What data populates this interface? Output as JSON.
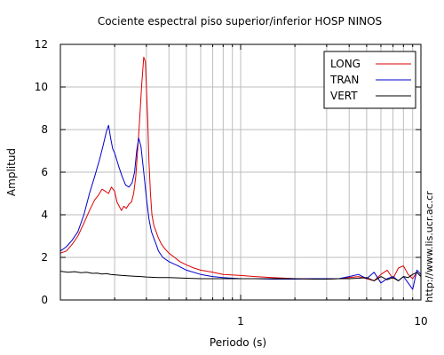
{
  "chart_data": {
    "type": "line",
    "title": "Cociente espectral piso superior/inferior  HOSP NINOS",
    "xlabel": "Periodo (s)",
    "ylabel": "Amplitud",
    "xscale": "log",
    "xlim": [
      0.1,
      10
    ],
    "ylim": [
      0,
      12
    ],
    "grid": true,
    "legend_position": "top-right",
    "x_tick_labels": [
      {
        "value": 1,
        "label": "1"
      },
      {
        "value": 10,
        "label": "10"
      }
    ],
    "y_tick_labels": [
      {
        "value": 0,
        "label": "0"
      },
      {
        "value": 2,
        "label": "2"
      },
      {
        "value": 4,
        "label": "4"
      },
      {
        "value": 6,
        "label": "6"
      },
      {
        "value": 8,
        "label": "8"
      },
      {
        "value": 10,
        "label": "10"
      },
      {
        "value": 12,
        "label": "12"
      }
    ],
    "annotation": "http://www.lis.ucr.ac.cr",
    "series": [
      {
        "name": "LONG",
        "color": "#dd0000",
        "x": [
          0.1,
          0.108,
          0.116,
          0.125,
          0.135,
          0.145,
          0.155,
          0.162,
          0.17,
          0.178,
          0.185,
          0.192,
          0.2,
          0.206,
          0.212,
          0.218,
          0.225,
          0.232,
          0.24,
          0.248,
          0.255,
          0.262,
          0.268,
          0.275,
          0.282,
          0.29,
          0.296,
          0.3,
          0.305,
          0.31,
          0.316,
          0.322,
          0.33,
          0.34,
          0.35,
          0.365,
          0.38,
          0.4,
          0.43,
          0.46,
          0.5,
          0.55,
          0.6,
          0.7,
          0.8,
          1.0,
          1.2,
          1.5,
          2.0,
          2.5,
          3.0,
          3.5,
          4.0,
          4.5,
          5.0,
          5.5,
          6.0,
          6.5,
          7.0,
          7.5,
          8.0,
          8.5,
          9.0,
          9.5,
          10.0
        ],
        "y": [
          2.2,
          2.3,
          2.6,
          3.0,
          3.6,
          4.2,
          4.7,
          4.9,
          5.2,
          5.1,
          5.0,
          5.3,
          5.1,
          4.6,
          4.4,
          4.2,
          4.4,
          4.3,
          4.5,
          4.6,
          5.0,
          5.8,
          7.0,
          8.4,
          10.0,
          11.4,
          11.2,
          10.0,
          8.5,
          6.5,
          5.0,
          4.0,
          3.5,
          3.2,
          2.9,
          2.6,
          2.4,
          2.2,
          2.0,
          1.8,
          1.65,
          1.5,
          1.4,
          1.3,
          1.2,
          1.15,
          1.1,
          1.05,
          1.0,
          1.0,
          0.98,
          1.0,
          1.05,
          1.1,
          1.0,
          0.9,
          1.2,
          1.4,
          1.0,
          1.5,
          1.6,
          1.2,
          1.0,
          1.3,
          1.1
        ]
      },
      {
        "name": "TRAN",
        "color": "#0000cc",
        "x": [
          0.1,
          0.108,
          0.116,
          0.125,
          0.135,
          0.145,
          0.155,
          0.165,
          0.172,
          0.18,
          0.185,
          0.19,
          0.195,
          0.2,
          0.205,
          0.212,
          0.22,
          0.23,
          0.24,
          0.25,
          0.258,
          0.265,
          0.272,
          0.28,
          0.29,
          0.3,
          0.31,
          0.32,
          0.33,
          0.34,
          0.35,
          0.37,
          0.4,
          0.45,
          0.5,
          0.6,
          0.7,
          0.8,
          1.0,
          1.2,
          1.5,
          2.0,
          2.5,
          3.0,
          3.5,
          4.0,
          4.5,
          5.0,
          5.5,
          6.0,
          6.5,
          7.0,
          7.5,
          8.0,
          8.5,
          9.0,
          9.5,
          10.0
        ],
        "y": [
          2.3,
          2.5,
          2.8,
          3.2,
          4.0,
          5.0,
          5.8,
          6.6,
          7.2,
          7.9,
          8.2,
          7.6,
          7.1,
          6.9,
          6.6,
          6.2,
          5.8,
          5.4,
          5.3,
          5.5,
          6.0,
          7.0,
          7.6,
          7.2,
          6.0,
          4.8,
          3.8,
          3.2,
          2.9,
          2.6,
          2.3,
          2.0,
          1.8,
          1.6,
          1.4,
          1.2,
          1.1,
          1.05,
          1.0,
          1.0,
          0.98,
          0.98,
          1.0,
          1.0,
          1.0,
          1.1,
          1.2,
          1.0,
          1.3,
          0.8,
          1.0,
          1.1,
          0.9,
          1.1,
          0.8,
          0.5,
          1.4,
          1.2
        ]
      },
      {
        "name": "VERT",
        "color": "#000000",
        "x": [
          0.1,
          0.11,
          0.12,
          0.13,
          0.14,
          0.15,
          0.16,
          0.17,
          0.18,
          0.19,
          0.2,
          0.22,
          0.25,
          0.28,
          0.3,
          0.35,
          0.4,
          0.5,
          0.6,
          0.7,
          0.8,
          1.0,
          1.2,
          1.5,
          2.0,
          2.5,
          3.0,
          3.5,
          4.0,
          4.5,
          5.0,
          5.5,
          6.0,
          6.5,
          7.0,
          7.5,
          8.0,
          8.5,
          9.0,
          9.5,
          10.0
        ],
        "y": [
          1.35,
          1.3,
          1.33,
          1.28,
          1.3,
          1.25,
          1.26,
          1.22,
          1.24,
          1.2,
          1.18,
          1.15,
          1.12,
          1.1,
          1.08,
          1.05,
          1.05,
          1.02,
          1.0,
          1.0,
          1.0,
          1.0,
          1.0,
          1.0,
          1.0,
          0.98,
          0.98,
          1.0,
          1.0,
          1.02,
          1.05,
          0.9,
          1.1,
          0.95,
          1.05,
          0.9,
          1.1,
          1.05,
          1.2,
          1.3,
          1.1
        ]
      }
    ]
  }
}
